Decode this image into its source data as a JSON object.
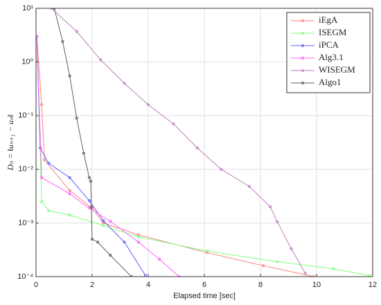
{
  "chart_data": {
    "type": "line",
    "xlabel": "Elapsed time [sec]",
    "ylabel": "Dₙ = ‖uₙ₊₁ − uₙ‖",
    "xlim": [
      0,
      12
    ],
    "xticks": [
      0,
      2,
      4,
      6,
      8,
      10,
      12
    ],
    "ylim": [
      0.0001,
      10
    ],
    "ylog": true,
    "yticks": [
      {
        "value": 0.0001,
        "label": "10⁻⁴"
      },
      {
        "value": 0.001,
        "label": "10⁻³"
      },
      {
        "value": 0.01,
        "label": "10⁻²"
      },
      {
        "value": 0.1,
        "label": "10⁻¹"
      },
      {
        "value": 1,
        "label": "10⁰"
      },
      {
        "value": 10,
        "label": "10¹"
      }
    ],
    "grid": true,
    "legend": "upper right",
    "series": [
      {
        "name": "iEgA",
        "color": "#ff7f7f",
        "x": [
          0.03,
          0.2,
          0.3,
          1.2,
          2.0,
          2.4,
          3.65,
          6.1,
          8.1,
          9.9
        ],
        "values": [
          3,
          0.16,
          0.015,
          0.004,
          0.0019,
          0.001,
          0.0006,
          0.00028,
          0.00016,
          0.0001
        ]
      },
      {
        "name": "ISEGM",
        "color": "#7fff7f",
        "x": [
          0.03,
          0.2,
          0.45,
          1.2,
          2.4,
          3.65,
          6.1,
          8.6,
          10.6,
          11.9
        ],
        "values": [
          3,
          0.0025,
          0.0017,
          0.0014,
          0.0009,
          0.00055,
          0.0003,
          0.00019,
          0.00014,
          0.000105
        ]
      },
      {
        "name": "iPCA",
        "color": "#5f5fff",
        "x": [
          0.03,
          0.15,
          0.45,
          1.2,
          1.9,
          2.4,
          3.15,
          3.9
        ],
        "values": [
          3,
          0.025,
          0.013,
          0.007,
          0.0026,
          0.0011,
          0.00044,
          0.000105
        ]
      },
      {
        "name": "Alg3.1",
        "color": "#ff5fff",
        "x": [
          0.03,
          0.2,
          1.2,
          1.9,
          2.65,
          3.65,
          4.4,
          5.1
        ],
        "values": [
          3,
          0.007,
          0.0035,
          0.0019,
          0.00107,
          0.00044,
          0.00021,
          0.0001
        ]
      },
      {
        "name": "WISEGM",
        "color": "#bf7fbf",
        "x": [
          0.55,
          1.45,
          2.3,
          3.15,
          4.0,
          4.9,
          5.75,
          6.6,
          7.6,
          8.35,
          8.6,
          9.1,
          9.6
        ],
        "values": [
          10,
          3.7,
          1.1,
          0.4,
          0.16,
          0.07,
          0.025,
          0.01,
          0.0048,
          0.002,
          0.00105,
          0.00033,
          0.000115
        ]
      },
      {
        "name": "Algo1",
        "color": "#5f5f5f",
        "x": [
          0.65,
          0.95,
          1.2,
          1.45,
          1.7,
          1.9,
          1.95,
          1.97,
          2.0,
          2.2,
          2.65,
          3.4
        ],
        "values": [
          10,
          2.4,
          0.55,
          0.09,
          0.02,
          0.007,
          0.006,
          0.002,
          0.0005,
          0.00044,
          0.00025,
          0.0001
        ]
      }
    ]
  }
}
